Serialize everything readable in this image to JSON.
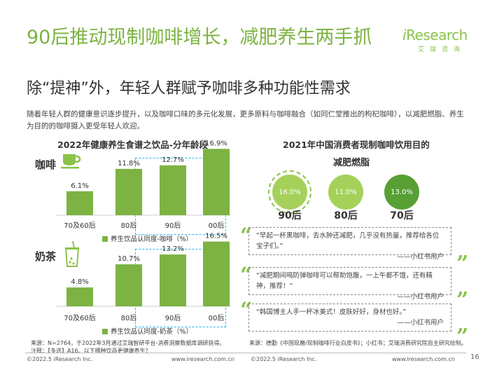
{
  "title": "90后推动现制咖啡增长，减肥养生两手抓",
  "subtitle": "除“提神”外，年轻人群赋予咖啡多种功能性需求",
  "intro": "随着年轻人群的健康意识逐步提升，以及咖啡口味的多元化发展，更多原料与咖啡融合（如同仁堂推出的枸杞咖啡），以减肥燃脂、养生为目的的咖啡摄入更受年轻人欢迎。",
  "logo": {
    "main_i": "i",
    "main_rest": "Research",
    "sub": "艾瑞咨询"
  },
  "colors": {
    "accent": "#7cb342",
    "dashed_blue": "#29b6f6",
    "circle_light": "#a5d15a",
    "circle_dark": "#58a033"
  },
  "left_chart": {
    "title": "2022年健康养生食谱之饮品-分年龄段",
    "coffee_label": "咖啡",
    "coffee_icon": "coffee-cup-icon",
    "tea_label": "奶茶",
    "tea_icon": "milk-tea-icon",
    "coffee_legend": "养生饮品认同度-咖啡（%）",
    "tea_legend": "养生饮品认同度-奶茶（%）"
  },
  "chart_data": [
    {
      "type": "bar",
      "title": "2022年健康养生食谱之饮品-分年龄段",
      "categories": [
        "70及60后",
        "80后",
        "90后",
        "00后"
      ],
      "series": [
        {
          "name": "养生饮品认同度-咖啡（%）",
          "values": [
            6.1,
            11.8,
            12.7,
            16.9
          ]
        }
      ],
      "labels": [
        "6.1%",
        "11.8%",
        "12.7%",
        "16.9%"
      ],
      "ylim": [
        0,
        17
      ]
    },
    {
      "type": "bar",
      "categories": [
        "70及60后",
        "80后",
        "90后",
        "00后"
      ],
      "series": [
        {
          "name": "养生饮品认同度-奶茶（%）",
          "values": [
            4.8,
            10.7,
            13.2,
            16.5
          ]
        }
      ],
      "labels": [
        "4.8%",
        "10.7%",
        "13.2%",
        "16.5%"
      ],
      "ylim": [
        0,
        17
      ]
    }
  ],
  "right_chart": {
    "title": "2021年中国消费者现制咖啡饮用目的",
    "purpose": "减肥燃脂",
    "items": [
      {
        "value": "16.0%",
        "age": "90后"
      },
      {
        "value": "11.0%",
        "age": "80后"
      },
      {
        "value": "13.0%",
        "age": "70后"
      }
    ]
  },
  "quotes": [
    {
      "text": "“早起一杯黑咖啡，去水肿还减肥，几乎没有热量，推荐给各位宝子们。”",
      "source": "——小红书用户"
    },
    {
      "text": "“减肥期间喝防弹咖啡可以帮助饱腹，一上午都不饿，还有精神，推荐！”",
      "source": "——小红书用户"
    },
    {
      "text": "“韩国博主人手一杯冰美式！皮肤好好，身材也好。”",
      "source": "——小红书用户"
    }
  ],
  "notes": {
    "left": "来源：N=2764，于2022年3月通过艾瑞智研平台-消费洞察数据库调研获得。\n注释：【多选】A16、以下哪种饮品更健康养生？",
    "right": "来源：德勤《中国现磨/现制咖啡行业白皮书》；小红书；艾瑞消费研究院自主研究绘制。"
  },
  "footer": {
    "left_copyright": "©2022.5 iResearch Inc.",
    "left_url": "www.iresearch.com.cn",
    "right_copyright": "©2022.5 iResearch Inc.",
    "right_url": "www.iresearch.com.cn",
    "page": "16"
  }
}
